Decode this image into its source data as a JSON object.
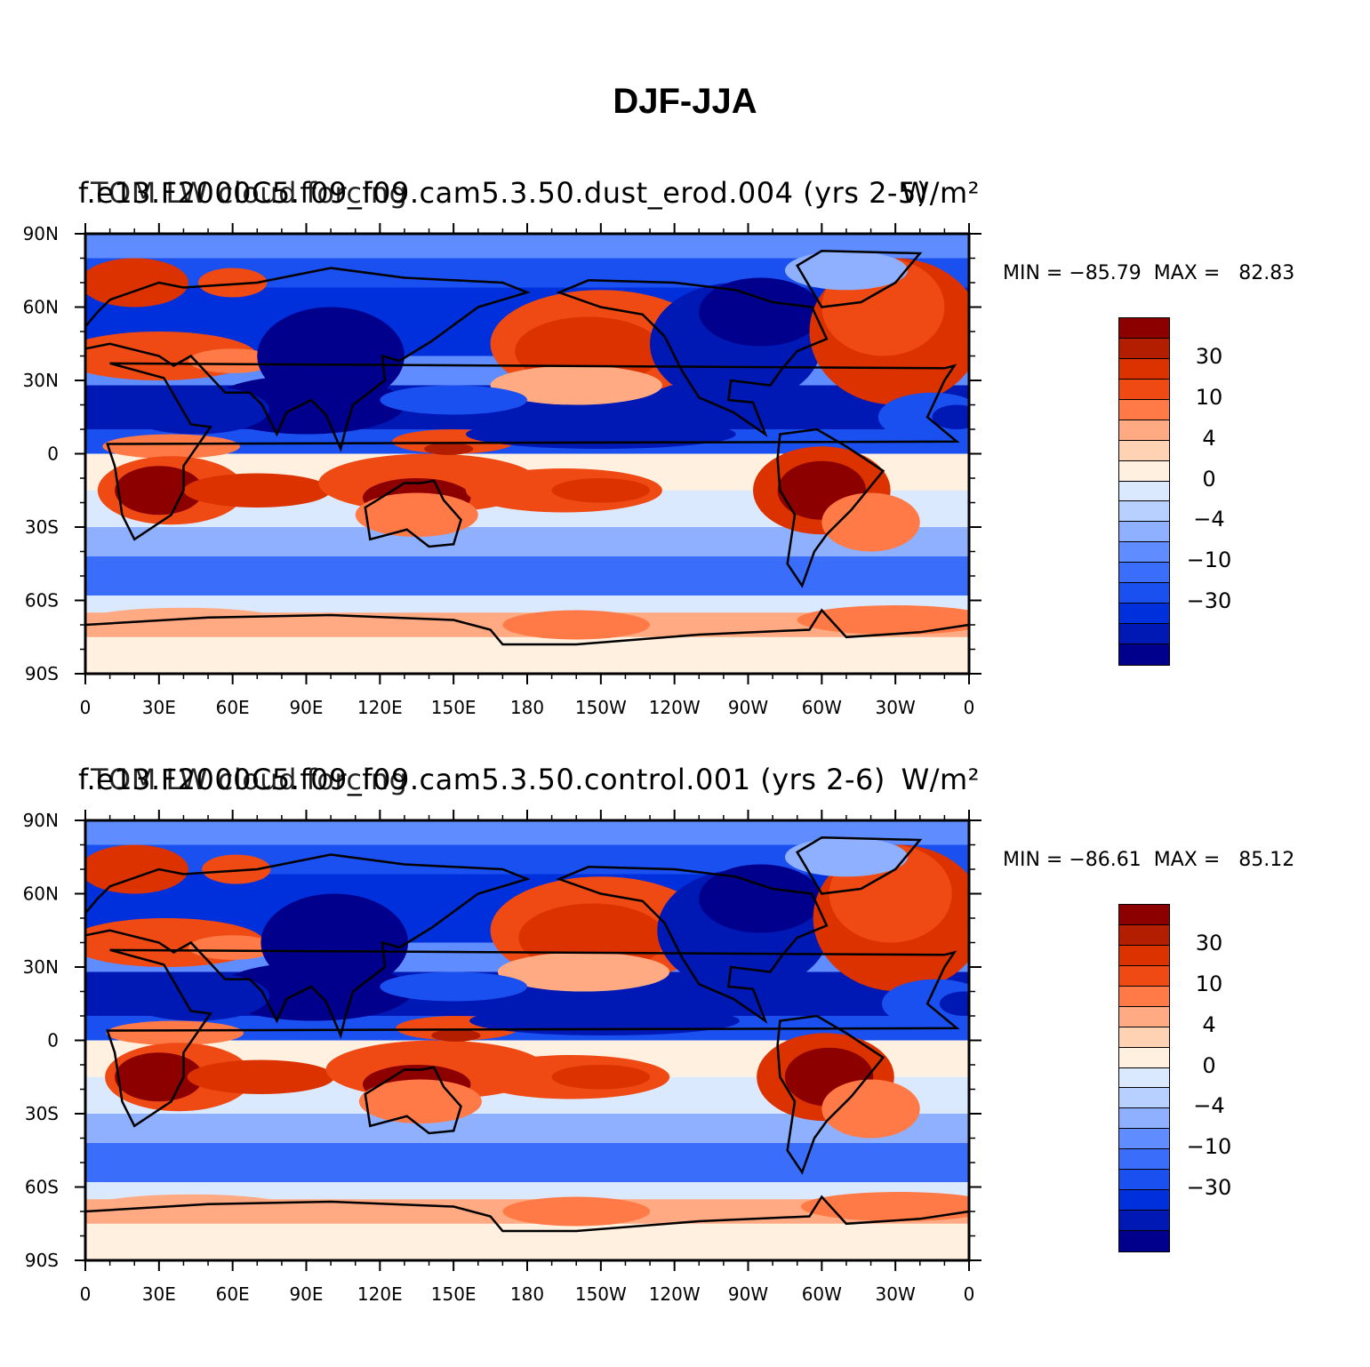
{
  "figure": {
    "main_title": "DJF-JJA",
    "colors": {
      "levels": [
        "#00008c",
        "#0018b4",
        "#0030dc",
        "#1a4ff0",
        "#3a6dfa",
        "#5f8cff",
        "#8fb0ff",
        "#b8d0ff",
        "#dbe9ff",
        "#fff0e0",
        "#ffd2b4",
        "#ffaa82",
        "#ff7a46",
        "#f04a14",
        "#dc3200",
        "#b41e00",
        "#8c0000"
      ],
      "land_outline": "#000000"
    },
    "colorbar_labels": [
      "30",
      "10",
      "4",
      "0",
      "−4",
      "−10",
      "−30"
    ],
    "lon_labels": [
      "0",
      "30E",
      "60E",
      "90E",
      "120E",
      "150E",
      "180",
      "150W",
      "120W",
      "90W",
      "60W",
      "30W",
      "0"
    ],
    "lat_labels": [
      "90N",
      "60N",
      "30N",
      "0",
      "30S",
      "60S",
      "90S"
    ]
  },
  "panels": [
    {
      "title_left": "f.e13.F2000C5.f09_f09.cam5.3.50.dust_erod.004 (yrs 2-5)",
      "title_center": "TOM LW cloud forcing",
      "title_right": "W/m²",
      "min_label": "MIN = −85.79",
      "max_label": "MAX =   82.83"
    },
    {
      "title_left": "f.e13.F2000C5.f09_f09.cam5.3.50.control.001 (yrs 2-6)",
      "title_center": "TOM LW cloud forcing",
      "title_right": "W/m²",
      "min_label": "MIN = −86.61",
      "max_label": "MAX =   85.12"
    }
  ]
}
